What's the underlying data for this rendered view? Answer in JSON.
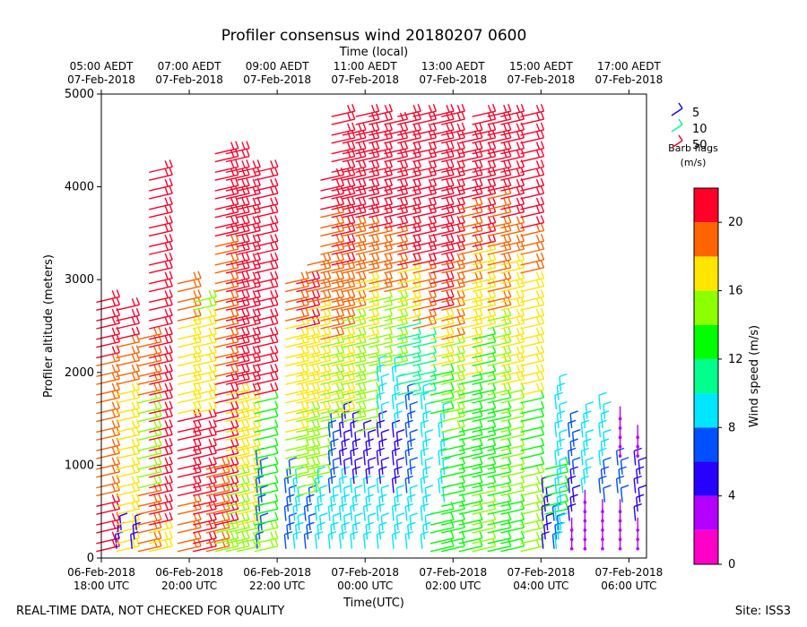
{
  "chart_data": {
    "type": "wind-barb-profile",
    "title": "Profiler consensus wind 20180207 0600",
    "top_axis_label": "Time (local)",
    "xlabel": "Time(UTC)",
    "ylabel": "Profiler altitude (meters)",
    "ylim": [
      0,
      5000
    ],
    "xlim_hours_since_1800utc": [
      0,
      12.4
    ],
    "y_ticks": [
      0,
      1000,
      2000,
      3000,
      4000,
      5000
    ],
    "bottom_ticks": [
      {
        "hour": 0,
        "line1": "06-Feb-2018",
        "line2": "18:00 UTC"
      },
      {
        "hour": 2,
        "line1": "06-Feb-2018",
        "line2": "20:00 UTC"
      },
      {
        "hour": 4,
        "line1": "06-Feb-2018",
        "line2": "22:00 UTC"
      },
      {
        "hour": 6,
        "line1": "07-Feb-2018",
        "line2": "00:00 UTC"
      },
      {
        "hour": 8,
        "line1": "07-Feb-2018",
        "line2": "02:00 UTC"
      },
      {
        "hour": 10,
        "line1": "07-Feb-2018",
        "line2": "04:00 UTC"
      },
      {
        "hour": 12,
        "line1": "07-Feb-2018",
        "line2": "06:00 UTC"
      }
    ],
    "top_ticks": [
      {
        "hour": 0,
        "line1": "05:00 AEDT",
        "line2": "07-Feb-2018"
      },
      {
        "hour": 2,
        "line1": "07:00 AEDT",
        "line2": "07-Feb-2018"
      },
      {
        "hour": 4,
        "line1": "09:00 AEDT",
        "line2": "07-Feb-2018"
      },
      {
        "hour": 6,
        "line1": "11:00 AEDT",
        "line2": "07-Feb-2018"
      },
      {
        "hour": 8,
        "line1": "13:00 AEDT",
        "line2": "07-Feb-2018"
      },
      {
        "hour": 10,
        "line1": "15:00 AEDT",
        "line2": "07-Feb-2018"
      },
      {
        "hour": 12,
        "line1": "17:00 AEDT",
        "line2": "07-Feb-2018"
      }
    ],
    "barb_legend": {
      "title_line1": "Barb flags",
      "title_line2": "(m/s)",
      "entries": [
        {
          "label": "5",
          "color": "#1400ff"
        },
        {
          "label": "10",
          "color": "#00ff96"
        },
        {
          "label": "50",
          "color": "#ff0028"
        }
      ]
    },
    "colorbar": {
      "label": "Wind speed (m/s)",
      "range": [
        0,
        22
      ],
      "ticks": [
        0,
        4,
        8,
        12,
        16,
        20
      ],
      "bands": [
        {
          "from": 0,
          "to": 2,
          "color": "#ff00c8"
        },
        {
          "from": 2,
          "to": 4,
          "color": "#b400ff"
        },
        {
          "from": 4,
          "to": 6,
          "color": "#2800ff"
        },
        {
          "from": 6,
          "to": 8,
          "color": "#0050ff"
        },
        {
          "from": 8,
          "to": 10,
          "color": "#00e6ff"
        },
        {
          "from": 10,
          "to": 12,
          "color": "#00ff8c"
        },
        {
          "from": 12,
          "to": 14,
          "color": "#00ff00"
        },
        {
          "from": 14,
          "to": 16,
          "color": "#8cff00"
        },
        {
          "from": 16,
          "to": 18,
          "color": "#ffe600"
        },
        {
          "from": 18,
          "to": 20,
          "color": "#ff6400"
        },
        {
          "from": 20,
          "to": 22,
          "color": "#ff0028"
        }
      ]
    },
    "profiles": [
      {
        "hour": 0.15,
        "top": 2850,
        "segments": [
          {
            "to": 650,
            "speed": 20
          },
          {
            "to": 1900,
            "speed": 18
          },
          {
            "to": 2100,
            "speed": 19
          },
          {
            "to": 2900,
            "speed": 21
          }
        ]
      },
      {
        "hour": 0.4,
        "top": 300,
        "segments": [
          {
            "to": 300,
            "speed": 5
          }
        ]
      },
      {
        "hour": 0.6,
        "top": 2750,
        "segments": [
          {
            "to": 500,
            "speed": 17
          },
          {
            "to": 1800,
            "speed": 17
          },
          {
            "to": 2300,
            "speed": 19
          },
          {
            "to": 2800,
            "speed": 21
          }
        ]
      },
      {
        "hour": 0.75,
        "top": 300,
        "segments": [
          {
            "to": 300,
            "speed": 5
          }
        ]
      },
      {
        "hour": 1.1,
        "top": 2450,
        "segments": [
          {
            "to": 700,
            "speed": 18
          },
          {
            "to": 1700,
            "speed": 15
          },
          {
            "to": 2500,
            "speed": 19
          }
        ]
      },
      {
        "hour": 1.35,
        "top": 4200,
        "segments": [
          {
            "to": 300,
            "speed": 16
          },
          {
            "to": 3400,
            "speed": 20
          },
          {
            "to": 4200,
            "speed": 21
          }
        ]
      },
      {
        "hour": 2.0,
        "top": 3050,
        "segments": [
          {
            "to": 600,
            "speed": 18
          },
          {
            "to": 1500,
            "speed": 20
          },
          {
            "to": 2500,
            "speed": 17
          },
          {
            "to": 3100,
            "speed": 19
          }
        ]
      },
      {
        "hour": 2.35,
        "top": 2800,
        "segments": [
          {
            "to": 600,
            "speed": 20
          },
          {
            "to": 1500,
            "speed": 21
          },
          {
            "to": 2600,
            "speed": 16
          },
          {
            "to": 2800,
            "speed": 15
          }
        ]
      },
      {
        "hour": 2.65,
        "top": 1000,
        "segments": [
          {
            "to": 1000,
            "speed": 18
          }
        ]
      },
      {
        "hour": 2.85,
        "top": 4450,
        "segments": [
          {
            "to": 300,
            "speed": 15
          },
          {
            "to": 1900,
            "speed": 21
          },
          {
            "to": 3400,
            "speed": 19
          },
          {
            "to": 4450,
            "speed": 21
          }
        ]
      },
      {
        "hour": 3.1,
        "top": 4450,
        "segments": [
          {
            "to": 900,
            "speed": 15
          },
          {
            "to": 1800,
            "speed": 16
          },
          {
            "to": 4450,
            "speed": 21
          }
        ]
      },
      {
        "hour": 3.35,
        "top": 4250,
        "segments": [
          {
            "to": 300,
            "speed": 15
          },
          {
            "to": 1700,
            "speed": 16
          },
          {
            "to": 4250,
            "speed": 21
          }
        ]
      },
      {
        "hour": 3.6,
        "top": 1000,
        "segments": [
          {
            "to": 1000,
            "speed": 6
          }
        ]
      },
      {
        "hour": 3.75,
        "top": 4200,
        "segments": [
          {
            "to": 300,
            "speed": 15
          },
          {
            "to": 1700,
            "speed": 13
          },
          {
            "to": 4200,
            "speed": 21
          }
        ]
      },
      {
        "hour": 4.25,
        "top": 900,
        "segments": [
          {
            "to": 900,
            "speed": 7
          }
        ]
      },
      {
        "hour": 4.45,
        "top": 3050,
        "segments": [
          {
            "to": 800,
            "speed": 9
          },
          {
            "to": 1300,
            "speed": 14
          },
          {
            "to": 2500,
            "speed": 17
          },
          {
            "to": 3050,
            "speed": 19
          }
        ]
      },
      {
        "hour": 4.7,
        "top": 3050,
        "segments": [
          {
            "to": 600,
            "speed": 7
          },
          {
            "to": 1600,
            "speed": 15
          },
          {
            "to": 2400,
            "speed": 17
          },
          {
            "to": 3050,
            "speed": 20
          }
        ]
      },
      {
        "hour": 4.95,
        "top": 3200,
        "segments": [
          {
            "to": 800,
            "speed": 8
          },
          {
            "to": 1500,
            "speed": 14
          },
          {
            "to": 2700,
            "speed": 16
          },
          {
            "to": 3200,
            "speed": 19
          }
        ]
      },
      {
        "hour": 5.25,
        "top": 4150,
        "segments": [
          {
            "to": 600,
            "speed": 9
          },
          {
            "to": 1400,
            "speed": 6
          },
          {
            "to": 2300,
            "speed": 15
          },
          {
            "to": 2900,
            "speed": 18
          },
          {
            "to": 3700,
            "speed": 19
          },
          {
            "to": 4150,
            "speed": 21
          }
        ]
      },
      {
        "hour": 5.5,
        "top": 4800,
        "segments": [
          {
            "to": 800,
            "speed": 9
          },
          {
            "to": 1500,
            "speed": 5
          },
          {
            "to": 2400,
            "speed": 16
          },
          {
            "to": 3100,
            "speed": 18
          },
          {
            "to": 4800,
            "speed": 21
          }
        ]
      },
      {
        "hour": 5.75,
        "top": 4650,
        "segments": [
          {
            "to": 700,
            "speed": 9
          },
          {
            "to": 1400,
            "speed": 5
          },
          {
            "to": 2600,
            "speed": 15
          },
          {
            "to": 3600,
            "speed": 18
          },
          {
            "to": 4650,
            "speed": 21
          }
        ]
      },
      {
        "hour": 6.05,
        "top": 4800,
        "segments": [
          {
            "to": 700,
            "speed": 8
          },
          {
            "to": 1300,
            "speed": 5
          },
          {
            "to": 2300,
            "speed": 14
          },
          {
            "to": 3000,
            "speed": 17
          },
          {
            "to": 3600,
            "speed": 19
          },
          {
            "to": 4800,
            "speed": 21
          }
        ]
      },
      {
        "hour": 6.35,
        "top": 4800,
        "segments": [
          {
            "to": 700,
            "speed": 8
          },
          {
            "to": 1400,
            "speed": 5
          },
          {
            "to": 2000,
            "speed": 9
          },
          {
            "to": 2800,
            "speed": 14
          },
          {
            "to": 3500,
            "speed": 18
          },
          {
            "to": 4800,
            "speed": 21
          }
        ]
      },
      {
        "hour": 6.7,
        "top": 4750,
        "segments": [
          {
            "to": 600,
            "speed": 9
          },
          {
            "to": 1300,
            "speed": 5
          },
          {
            "to": 2000,
            "speed": 9
          },
          {
            "to": 2800,
            "speed": 15
          },
          {
            "to": 3500,
            "speed": 18
          },
          {
            "to": 4750,
            "speed": 21
          }
        ]
      },
      {
        "hour": 7.0,
        "top": 4800,
        "segments": [
          {
            "to": 600,
            "speed": 8
          },
          {
            "to": 1700,
            "speed": 7
          },
          {
            "to": 2500,
            "speed": 10
          },
          {
            "to": 3100,
            "speed": 17
          },
          {
            "to": 4800,
            "speed": 21
          }
        ]
      },
      {
        "hour": 7.35,
        "top": 4800,
        "segments": [
          {
            "to": 700,
            "speed": 9
          },
          {
            "to": 1700,
            "speed": 8
          },
          {
            "to": 2400,
            "speed": 11
          },
          {
            "to": 3100,
            "speed": 18
          },
          {
            "to": 4800,
            "speed": 21
          }
        ]
      },
      {
        "hour": 7.75,
        "top": 4800,
        "segments": [
          {
            "to": 500,
            "speed": 13
          },
          {
            "to": 1500,
            "speed": 9
          },
          {
            "to": 2000,
            "speed": 12
          },
          {
            "to": 2600,
            "speed": 16
          },
          {
            "to": 4800,
            "speed": 21
          }
        ]
      },
      {
        "hour": 8.0,
        "top": 4800,
        "segments": [
          {
            "to": 500,
            "speed": 13
          },
          {
            "to": 1300,
            "speed": 12
          },
          {
            "to": 2300,
            "speed": 15
          },
          {
            "to": 3200,
            "speed": 18
          },
          {
            "to": 4800,
            "speed": 21
          }
        ]
      },
      {
        "hour": 8.4,
        "top": 4600,
        "segments": [
          {
            "to": 800,
            "speed": 13
          },
          {
            "to": 1900,
            "speed": 12
          },
          {
            "to": 2900,
            "speed": 16
          },
          {
            "to": 3800,
            "speed": 18
          },
          {
            "to": 4600,
            "speed": 21
          }
        ]
      },
      {
        "hour": 8.7,
        "top": 4850,
        "segments": [
          {
            "to": 700,
            "speed": 14
          },
          {
            "to": 1600,
            "speed": 12
          },
          {
            "to": 2400,
            "speed": 13
          },
          {
            "to": 3300,
            "speed": 17
          },
          {
            "to": 4850,
            "speed": 21
          }
        ]
      },
      {
        "hour": 9.05,
        "top": 4850,
        "segments": [
          {
            "to": 600,
            "speed": 12
          },
          {
            "to": 1700,
            "speed": 13
          },
          {
            "to": 2600,
            "speed": 15
          },
          {
            "to": 3900,
            "speed": 18
          },
          {
            "to": 4850,
            "speed": 21
          }
        ]
      },
      {
        "hour": 9.35,
        "top": 4850,
        "segments": [
          {
            "to": 600,
            "speed": 13
          },
          {
            "to": 1800,
            "speed": 14
          },
          {
            "to": 3200,
            "speed": 16
          },
          {
            "to": 3600,
            "speed": 18
          },
          {
            "to": 4850,
            "speed": 21
          }
        ]
      },
      {
        "hour": 9.8,
        "top": 4850,
        "segments": [
          {
            "to": 900,
            "speed": 15
          },
          {
            "to": 1700,
            "speed": 13
          },
          {
            "to": 2300,
            "speed": 16
          },
          {
            "to": 3000,
            "speed": 17
          },
          {
            "to": 3500,
            "speed": 19
          },
          {
            "to": 4850,
            "speed": 21
          }
        ]
      },
      {
        "hour": 10.1,
        "top": 700,
        "segments": [
          {
            "to": 700,
            "speed": 5
          }
        ]
      },
      {
        "hour": 10.35,
        "top": 1050,
        "segments": [
          {
            "to": 400,
            "speed": 6
          },
          {
            "to": 1050,
            "speed": 13
          }
        ]
      },
      {
        "hour": 10.4,
        "top": 1850,
        "segments": [
          {
            "to": 1850,
            "speed": 9
          }
        ]
      },
      {
        "hour": 10.7,
        "top": 1400,
        "segments": [
          {
            "to": 300,
            "speed": 2
          },
          {
            "to": 800,
            "speed": 4
          },
          {
            "to": 1400,
            "speed": 7
          }
        ]
      },
      {
        "hour": 11.0,
        "top": 1500,
        "segments": [
          {
            "to": 600,
            "speed": 2
          },
          {
            "to": 1500,
            "speed": 9
          }
        ]
      },
      {
        "hour": 11.4,
        "top": 1600,
        "segments": [
          {
            "to": 500,
            "speed": 2
          },
          {
            "to": 900,
            "speed": 7
          },
          {
            "to": 1600,
            "speed": 9
          }
        ]
      },
      {
        "hour": 11.8,
        "top": 1500,
        "segments": [
          {
            "to": 500,
            "speed": 2
          },
          {
            "to": 1000,
            "speed": 6
          },
          {
            "to": 1500,
            "speed": 2
          }
        ]
      },
      {
        "hour": 12.2,
        "top": 1300,
        "segments": [
          {
            "to": 300,
            "speed": 2
          },
          {
            "to": 1000,
            "speed": 5
          },
          {
            "to": 1300,
            "speed": 2
          }
        ]
      }
    ]
  },
  "footer": {
    "left": "REAL-TIME DATA, NOT CHECKED FOR QUALITY",
    "right": "Site: ISS3"
  }
}
